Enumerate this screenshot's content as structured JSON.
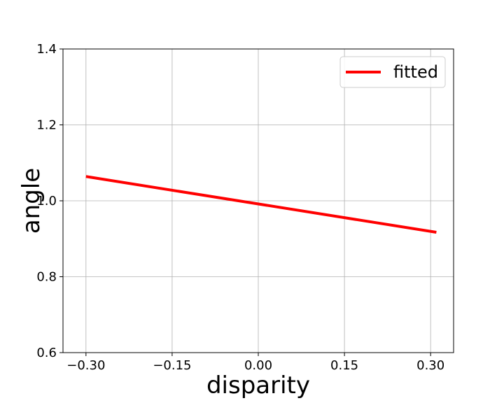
{
  "chart_data": {
    "type": "line",
    "xlabel": "disparity",
    "ylabel": "angle",
    "xlim": [
      -0.34,
      0.34
    ],
    "ylim": [
      0.6,
      1.4
    ],
    "x_ticks": [
      -0.3,
      -0.15,
      0.0,
      0.15,
      0.3
    ],
    "x_tick_labels": [
      "−0.30",
      "−0.15",
      "0.00",
      "0.15",
      "0.30"
    ],
    "y_ticks": [
      0.6,
      0.8,
      1.0,
      1.2,
      1.4
    ],
    "y_tick_labels": [
      "0.6",
      "0.8",
      "1.0",
      "1.2",
      "1.4"
    ],
    "grid": true,
    "legend_position": "top-right",
    "series": [
      {
        "name": "fitted",
        "color": "#ff0000",
        "x": [
          -0.3,
          0.31
        ],
        "y": [
          1.064,
          0.917
        ]
      }
    ]
  }
}
